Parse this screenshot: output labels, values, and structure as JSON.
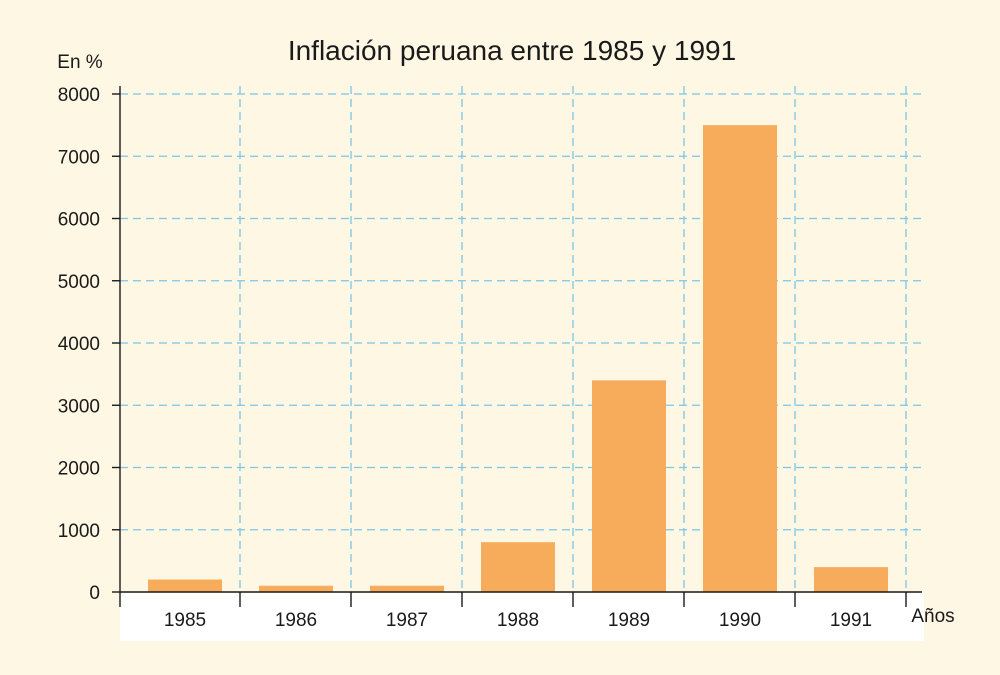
{
  "chart_data": {
    "type": "bar",
    "title": "Inflación peruana entre 1985 y 1991",
    "ylabel": "En %",
    "xlabel": "Años",
    "categories": [
      "1985",
      "1986",
      "1987",
      "1988",
      "1989",
      "1990",
      "1991"
    ],
    "values": [
      200,
      100,
      100,
      800,
      3400,
      7500,
      400
    ],
    "ylim": [
      0,
      8000
    ],
    "yticks": [
      "0",
      "1000",
      "2000",
      "3000",
      "4000",
      "5000",
      "6000",
      "7000",
      "8000"
    ],
    "grid": true,
    "colors": {
      "background": "#fdf7e4",
      "bar": "#f7ac5c",
      "grid": "#7cc6e8",
      "axis": "#1a1a1a",
      "label_band": "#ffffff"
    }
  }
}
